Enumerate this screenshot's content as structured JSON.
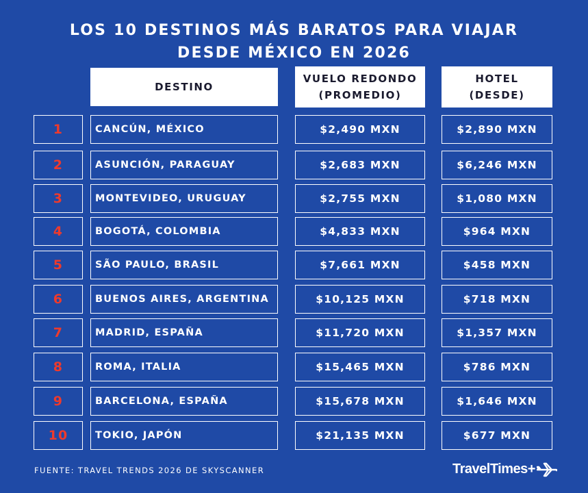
{
  "title": {
    "line1": "LOS 10 DESTINOS MÁS BARATOS PARA VIAJAR",
    "line2": "DESDE MÉXICO EN 2026"
  },
  "headers": {
    "destino": "DESTINO",
    "vuelo_line1": "VUELO REDONDO",
    "vuelo_line2": "(PROMEDIO)",
    "hotel_line1": "HOTEL",
    "hotel_line2": "(DESDE)"
  },
  "rows": [
    {
      "rank": "1",
      "destino": "CANCÚN, MÉXICO",
      "vuelo": "$2,490 MXN",
      "hotel": "$2,890 MXN"
    },
    {
      "rank": "2",
      "destino": "ASUNCIÓN, PARAGUAY",
      "vuelo": "$2,683 MXN",
      "hotel": "$6,246 MXN"
    },
    {
      "rank": "3",
      "destino": "MONTEVIDEO, URUGUAY",
      "vuelo": "$2,755 MXN",
      "hotel": "$1,080 MXN"
    },
    {
      "rank": "4",
      "destino": "BOGOTÁ, COLOMBIA",
      "vuelo": "$4,833 MXN",
      "hotel": "$964 MXN"
    },
    {
      "rank": "5",
      "destino": "SÃO PAULO, BRASIL",
      "vuelo": "$7,661 MXN",
      "hotel": "$458 MXN"
    },
    {
      "rank": "6",
      "destino": "BUENOS AIRES, ARGENTINA",
      "vuelo": "$10,125 MXN",
      "hotel": "$718 MXN"
    },
    {
      "rank": "7",
      "destino": "MADRID, ESPAÑA",
      "vuelo": "$11,720 MXN",
      "hotel": "$1,357 MXN"
    },
    {
      "rank": "8",
      "destino": "ROMA, ITALIA",
      "vuelo": "$15,465 MXN",
      "hotel": "$786 MXN"
    },
    {
      "rank": "9",
      "destino": "BARCELONA, ESPAÑA",
      "vuelo": "$15,678 MXN",
      "hotel": "$1,646 MXN"
    },
    {
      "rank": "10",
      "destino": "TOKIO, JAPÓN",
      "vuelo": "$21,135 MXN",
      "hotel": "$677 MXN"
    }
  ],
  "source": "FUENTE: TRAVEL TRENDS 2026 DE SKYSCANNER",
  "logo": {
    "text": "TravelTimes+",
    "icon": "airplane-icon"
  },
  "colors": {
    "background": "#1f4aa6",
    "rank": "#ee3a2c",
    "header_bg": "#ffffff",
    "header_text": "#1a1a2e"
  }
}
